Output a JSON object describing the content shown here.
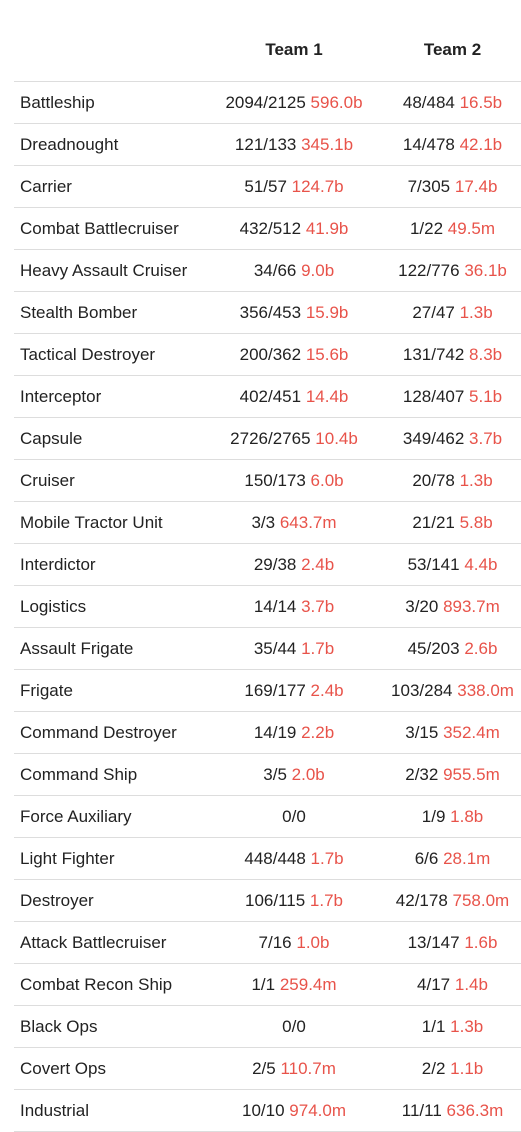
{
  "header": {
    "team1": "Team 1",
    "team2": "Team 2"
  },
  "rows": [
    {
      "name": "Battleship",
      "t1_count": "2094/2125",
      "t1_value": "596.0b",
      "t2_count": "48/484",
      "t2_value": "16.5b"
    },
    {
      "name": "Dreadnought",
      "t1_count": "121/133",
      "t1_value": "345.1b",
      "t2_count": "14/478",
      "t2_value": "42.1b"
    },
    {
      "name": "Carrier",
      "t1_count": "51/57",
      "t1_value": "124.7b",
      "t2_count": "7/305",
      "t2_value": "17.4b"
    },
    {
      "name": "Combat Battlecruiser",
      "t1_count": "432/512",
      "t1_value": "41.9b",
      "t2_count": "1/22",
      "t2_value": "49.5m"
    },
    {
      "name": "Heavy Assault Cruiser",
      "t1_count": "34/66",
      "t1_value": "9.0b",
      "t2_count": "122/776",
      "t2_value": "36.1b"
    },
    {
      "name": "Stealth Bomber",
      "t1_count": "356/453",
      "t1_value": "15.9b",
      "t2_count": "27/47",
      "t2_value": "1.3b"
    },
    {
      "name": "Tactical Destroyer",
      "t1_count": "200/362",
      "t1_value": "15.6b",
      "t2_count": "131/742",
      "t2_value": "8.3b"
    },
    {
      "name": "Interceptor",
      "t1_count": "402/451",
      "t1_value": "14.4b",
      "t2_count": "128/407",
      "t2_value": "5.1b"
    },
    {
      "name": "Capsule",
      "t1_count": "2726/2765",
      "t1_value": "10.4b",
      "t2_count": "349/462",
      "t2_value": "3.7b"
    },
    {
      "name": "Cruiser",
      "t1_count": "150/173",
      "t1_value": "6.0b",
      "t2_count": "20/78",
      "t2_value": "1.3b"
    },
    {
      "name": "Mobile Tractor Unit",
      "t1_count": "3/3",
      "t1_value": "643.7m",
      "t2_count": "21/21",
      "t2_value": "5.8b"
    },
    {
      "name": "Interdictor",
      "t1_count": "29/38",
      "t1_value": "2.4b",
      "t2_count": "53/141",
      "t2_value": "4.4b"
    },
    {
      "name": "Logistics",
      "t1_count": "14/14",
      "t1_value": "3.7b",
      "t2_count": "3/20",
      "t2_value": "893.7m"
    },
    {
      "name": "Assault Frigate",
      "t1_count": "35/44",
      "t1_value": "1.7b",
      "t2_count": "45/203",
      "t2_value": "2.6b"
    },
    {
      "name": "Frigate",
      "t1_count": "169/177",
      "t1_value": "2.4b",
      "t2_count": "103/284",
      "t2_value": "338.0m"
    },
    {
      "name": "Command Destroyer",
      "t1_count": "14/19",
      "t1_value": "2.2b",
      "t2_count": "3/15",
      "t2_value": "352.4m"
    },
    {
      "name": "Command Ship",
      "t1_count": "3/5",
      "t1_value": "2.0b",
      "t2_count": "2/32",
      "t2_value": "955.5m"
    },
    {
      "name": "Force Auxiliary",
      "t1_count": "0/0",
      "t1_value": "",
      "t2_count": "1/9",
      "t2_value": "1.8b"
    },
    {
      "name": "Light Fighter",
      "t1_count": "448/448",
      "t1_value": "1.7b",
      "t2_count": "6/6",
      "t2_value": "28.1m"
    },
    {
      "name": "Destroyer",
      "t1_count": "106/115",
      "t1_value": "1.7b",
      "t2_count": "42/178",
      "t2_value": "758.0m"
    },
    {
      "name": "Attack Battlecruiser",
      "t1_count": "7/16",
      "t1_value": "1.0b",
      "t2_count": "13/147",
      "t2_value": "1.6b"
    },
    {
      "name": "Combat Recon Ship",
      "t1_count": "1/1",
      "t1_value": "259.4m",
      "t2_count": "4/17",
      "t2_value": "1.4b"
    },
    {
      "name": "Black Ops",
      "t1_count": "0/0",
      "t1_value": "",
      "t2_count": "1/1",
      "t2_value": "1.3b"
    },
    {
      "name": "Covert Ops",
      "t1_count": "2/5",
      "t1_value": "110.7m",
      "t2_count": "2/2",
      "t2_value": "1.1b"
    },
    {
      "name": "Industrial",
      "t1_count": "10/10",
      "t1_value": "974.0m",
      "t2_count": "11/11",
      "t2_value": "636.3m"
    }
  ],
  "colors": {
    "value_red": "#e8534a",
    "divider": "#dddddd",
    "text": "#222222"
  }
}
